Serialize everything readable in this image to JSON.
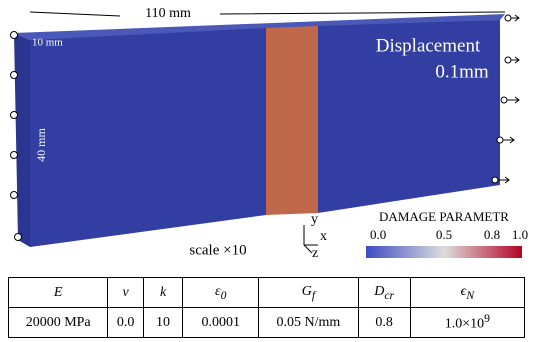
{
  "figure": {
    "dimensions": {
      "length": "110 mm",
      "thickness": "10 mm",
      "width": "40 mm"
    },
    "load": {
      "title": "Displacement",
      "amount": "0.1mm"
    },
    "scale": "scale ×10",
    "axes": {
      "y": "y",
      "x": "x",
      "z": "z"
    },
    "colorbar": {
      "title": "DAMAGE PARAMETR",
      "ticks": [
        "0.0",
        "0.5",
        "0.8",
        "1.0"
      ]
    }
  },
  "table": {
    "header": [
      {
        "symbol": "E"
      },
      {
        "symbol": "ν"
      },
      {
        "symbol": "k"
      },
      {
        "symbol": "ε",
        "sub": "0"
      },
      {
        "symbol": "G",
        "sub": "f"
      },
      {
        "symbol": "D",
        "sub": "cr"
      },
      {
        "symbol": "ϵ",
        "sub": "N"
      }
    ],
    "rows": [
      [
        {
          "text": "20000 MPa"
        },
        {
          "text": "0.0"
        },
        {
          "text": "10"
        },
        {
          "text": "0.0001"
        },
        {
          "text": "0.05 N/mm"
        },
        {
          "text": "0.8"
        },
        {
          "text": "1.0×10",
          "sup": "9"
        }
      ]
    ]
  }
}
